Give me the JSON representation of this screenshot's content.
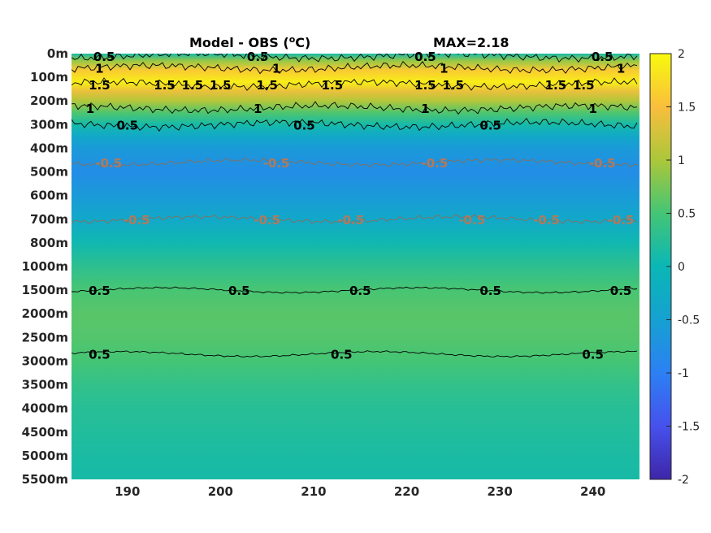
{
  "chart_data": {
    "type": "heatmap",
    "title": "Model - OBS (",
    "title_unit_sup": "o",
    "title_unit_tail": "C)",
    "annotation": "MAX=2.18",
    "xlabel": "",
    "ylabel": "",
    "xlim": [
      184,
      245
    ],
    "x_ticks": [
      190,
      200,
      210,
      220,
      230,
      240
    ],
    "y_tick_labels": [
      "0m",
      "100m",
      "200m",
      "300m",
      "400m",
      "500m",
      "600m",
      "700m",
      "800m",
      "1000m",
      "1500m",
      "2000m",
      "2500m",
      "3000m",
      "3500m",
      "4000m",
      "4500m",
      "5000m",
      "5500m"
    ],
    "colorbar": {
      "limits": [
        -2,
        2
      ],
      "ticks": [
        "2",
        "1.5",
        "1",
        "0.5",
        "0",
        "-0.5",
        "-1",
        "-1.5",
        "-2"
      ],
      "colormap": "parula"
    },
    "grid": false,
    "depth_profile": [
      {
        "level": 0,
        "value": 0.1
      },
      {
        "level": 0.3,
        "value": 0.9
      },
      {
        "level": 0.7,
        "value": 1.6
      },
      {
        "level": 1.2,
        "value": 1.9
      },
      {
        "level": 1.6,
        "value": 1.4
      },
      {
        "level": 2.0,
        "value": 1.05
      },
      {
        "level": 2.5,
        "value": 0.55
      },
      {
        "level": 3.0,
        "value": 0.1
      },
      {
        "level": 3.5,
        "value": -0.35
      },
      {
        "level": 4.0,
        "value": -0.6
      },
      {
        "level": 5.0,
        "value": -0.8
      },
      {
        "level": 6.0,
        "value": -0.6
      },
      {
        "level": 7.0,
        "value": -0.35
      },
      {
        "level": 8.0,
        "value": 0.05
      },
      {
        "level": 9.0,
        "value": 0.3
      },
      {
        "level": 10.0,
        "value": 0.52
      },
      {
        "level": 11.0,
        "value": 0.6
      },
      {
        "level": 12.0,
        "value": 0.58
      },
      {
        "level": 13.0,
        "value": 0.5
      },
      {
        "level": 14.0,
        "value": 0.35
      },
      {
        "level": 15.0,
        "value": 0.25
      },
      {
        "level": 16.0,
        "value": 0.2
      },
      {
        "level": 17.0,
        "value": 0.15
      },
      {
        "level": 18.0,
        "value": 0.12
      }
    ],
    "contours": [
      {
        "level": 0.5,
        "depth_level": 0.1,
        "labels": [
          {
            "x": 187.5,
            "text": "0.5"
          },
          {
            "x": 204,
            "text": "0.5"
          },
          {
            "x": 222,
            "text": "0.5"
          },
          {
            "x": 241,
            "text": "0.5"
          }
        ]
      },
      {
        "level": 1,
        "depth_level": 0.6,
        "labels": [
          {
            "x": 187,
            "text": "1"
          },
          {
            "x": 206,
            "text": "1"
          },
          {
            "x": 224,
            "text": "1"
          },
          {
            "x": 243,
            "text": "1"
          }
        ]
      },
      {
        "level": 1.5,
        "depth_level": 1.3,
        "labels": [
          {
            "x": 187,
            "text": "1.5"
          },
          {
            "x": 194,
            "text": "1.5"
          },
          {
            "x": 197,
            "text": "1.5"
          },
          {
            "x": 200,
            "text": "1.5"
          },
          {
            "x": 205,
            "text": "1.5"
          },
          {
            "x": 212,
            "text": "1.5"
          },
          {
            "x": 222,
            "text": "1.5"
          },
          {
            "x": 225,
            "text": "1.5"
          },
          {
            "x": 239,
            "text": "1.5"
          },
          {
            "x": 236,
            "text": "1.5"
          }
        ]
      },
      {
        "level": 1,
        "depth_level": 2.3,
        "labels": [
          {
            "x": 186,
            "text": "1"
          },
          {
            "x": 204,
            "text": "1"
          },
          {
            "x": 222,
            "text": "1"
          },
          {
            "x": 240,
            "text": "1"
          }
        ]
      },
      {
        "level": 0.5,
        "depth_level": 3.0,
        "labels": [
          {
            "x": 190,
            "text": "0.5"
          },
          {
            "x": 209,
            "text": "0.5"
          },
          {
            "x": 229,
            "text": "0.5"
          }
        ]
      },
      {
        "level": -0.5,
        "depth_level": 4.6,
        "labels": [
          {
            "x": 188,
            "text": "-0.5"
          },
          {
            "x": 206,
            "text": "-0.5"
          },
          {
            "x": 223,
            "text": "-0.5"
          },
          {
            "x": 241,
            "text": "-0.5"
          }
        ]
      },
      {
        "level": -0.5,
        "depth_level": 7.0,
        "labels": [
          {
            "x": 191,
            "text": "-0.5"
          },
          {
            "x": 205,
            "text": "-0.5"
          },
          {
            "x": 214,
            "text": "-0.5"
          },
          {
            "x": 227,
            "text": "-0.5"
          },
          {
            "x": 235,
            "text": "-0.5"
          },
          {
            "x": 243,
            "text": "-0.5"
          }
        ]
      },
      {
        "level": 0.5,
        "depth_level": 10.0,
        "labels": [
          {
            "x": 187,
            "text": "0.5"
          },
          {
            "x": 202,
            "text": "0.5"
          },
          {
            "x": 215,
            "text": "0.5"
          },
          {
            "x": 229,
            "text": "0.5"
          },
          {
            "x": 243,
            "text": "0.5"
          }
        ]
      },
      {
        "level": 0.5,
        "depth_level": 12.7,
        "labels": [
          {
            "x": 187,
            "text": "0.5"
          },
          {
            "x": 213,
            "text": "0.5"
          },
          {
            "x": 240,
            "text": "0.5"
          }
        ]
      }
    ]
  }
}
